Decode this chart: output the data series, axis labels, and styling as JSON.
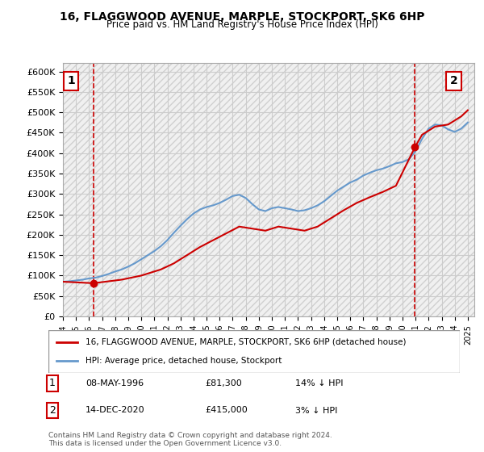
{
  "title": "16, FLAGGWOOD AVENUE, MARPLE, STOCKPORT, SK6 6HP",
  "subtitle": "Price paid vs. HM Land Registry's House Price Index (HPI)",
  "ylabel_ticks": [
    "£0",
    "£50K",
    "£100K",
    "£150K",
    "£200K",
    "£250K",
    "£300K",
    "£350K",
    "£400K",
    "£450K",
    "£500K",
    "£550K",
    "£600K"
  ],
  "ylim": [
    0,
    620000
  ],
  "xlim_start": 1994.0,
  "xlim_end": 2025.5,
  "hpi_color": "#6699cc",
  "price_color": "#cc0000",
  "marker1_date": 1996.36,
  "marker1_price": 81300,
  "marker1_label": "1",
  "marker1_info": "08-MAY-1996    £81,300    14% ↓ HPI",
  "marker2_date": 2020.96,
  "marker2_price": 415000,
  "marker2_label": "2",
  "marker2_info": "14-DEC-2020    £415,000    3% ↓ HPI",
  "legend_line1": "16, FLAGGWOOD AVENUE, MARPLE, STOCKPORT, SK6 6HP (detached house)",
  "legend_line2": "HPI: Average price, detached house, Stockport",
  "footnote": "Contains HM Land Registry data © Crown copyright and database right 2024.\nThis data is licensed under the Open Government Licence v3.0.",
  "background_hatch_color": "#e8e8e8",
  "grid_color": "#cccccc",
  "hpi_years": [
    1994,
    1994.5,
    1995,
    1995.5,
    1996,
    1996.5,
    1997,
    1997.5,
    1998,
    1998.5,
    1999,
    1999.5,
    2000,
    2000.5,
    2001,
    2001.5,
    2002,
    2002.5,
    2003,
    2003.5,
    2004,
    2004.5,
    2005,
    2005.5,
    2006,
    2006.5,
    2007,
    2007.5,
    2008,
    2008.5,
    2009,
    2009.5,
    2010,
    2010.5,
    2011,
    2011.5,
    2012,
    2012.5,
    2013,
    2013.5,
    2014,
    2014.5,
    2015,
    2015.5,
    2016,
    2016.5,
    2017,
    2017.5,
    2018,
    2018.5,
    2019,
    2019.5,
    2020,
    2020.5,
    2021,
    2021.5,
    2022,
    2022.5,
    2023,
    2023.5,
    2024,
    2024.5,
    2025
  ],
  "hpi_values": [
    85000,
    86000,
    88000,
    90000,
    93000,
    95000,
    99000,
    104000,
    110000,
    115000,
    122000,
    130000,
    140000,
    150000,
    160000,
    172000,
    187000,
    205000,
    222000,
    238000,
    252000,
    262000,
    268000,
    272000,
    278000,
    286000,
    295000,
    298000,
    290000,
    275000,
    262000,
    258000,
    265000,
    268000,
    265000,
    262000,
    258000,
    260000,
    265000,
    272000,
    282000,
    295000,
    308000,
    318000,
    328000,
    335000,
    345000,
    352000,
    358000,
    362000,
    368000,
    375000,
    378000,
    385000,
    405000,
    435000,
    460000,
    470000,
    468000,
    458000,
    452000,
    460000,
    475000
  ],
  "price_years": [
    1994.0,
    1996.36,
    1997.0,
    1998.5,
    2000.0,
    2001.5,
    2002.5,
    2003.5,
    2004.5,
    2006.0,
    2007.5,
    2008.5,
    2009.5,
    2010.5,
    2011.5,
    2012.5,
    2013.5,
    2014.5,
    2015.5,
    2016.5,
    2017.5,
    2018.5,
    2019.5,
    2020.96,
    2021.5,
    2022.5,
    2023.5,
    2024.5,
    2025.0
  ],
  "price_values": [
    85000,
    81300,
    84000,
    90000,
    100000,
    115000,
    130000,
    150000,
    170000,
    195000,
    220000,
    215000,
    210000,
    220000,
    215000,
    210000,
    220000,
    240000,
    260000,
    278000,
    292000,
    305000,
    320000,
    415000,
    445000,
    465000,
    470000,
    490000,
    505000
  ]
}
